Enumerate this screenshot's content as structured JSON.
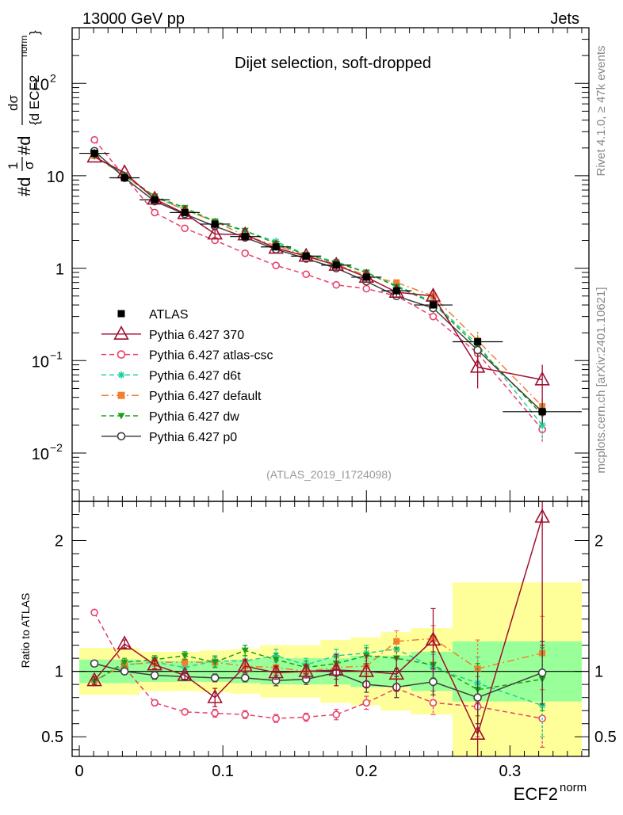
{
  "header": {
    "energy_label": "13000 GeV pp",
    "category_label": "Jets",
    "panel_title": "Dijet selection, soft-dropped",
    "analysis_id": "(ATLAS_2019_I1724098)",
    "side_text_version": "Rivet 4.1.0, ≥ 47k events",
    "side_text_site": "mcplots.cern.ch [arXiv:2401.10621]"
  },
  "colors": {
    "band_inner": "#99ff99",
    "band_outer": "#ffff99",
    "atlas": "#000000",
    "p370": "#a01030",
    "atlascsc": "#e8406a",
    "d6t": "#20d0a0",
    "default": "#f08030",
    "dw": "#18a018",
    "p0": "#404040"
  },
  "chart_data": [
    {
      "type": "line",
      "panel": "main",
      "title": "Dijet selection, soft-dropped",
      "ylabel": "#d¹/σ #dσ/{d ECF2^norm}",
      "ylabel_parts": {
        "a": "#d",
        "b": "1",
        "c": "σ",
        "d": "#d",
        "e": "dσ",
        "f": "{d ECF2",
        "g": "norm",
        "h": "}"
      },
      "yscale": "log",
      "xlim": [
        -0.005,
        0.355
      ],
      "ylim": [
        0.003,
        400
      ],
      "ytick_labels": [
        {
          "value": 0.01,
          "base": "10",
          "exp": "−2"
        },
        {
          "value": 0.1,
          "base": "10",
          "exp": "−1"
        },
        {
          "value": 1,
          "base": "1",
          "exp": ""
        },
        {
          "value": 10,
          "base": "10",
          "exp": ""
        },
        {
          "value": 100,
          "base": "10",
          "exp": "2"
        }
      ],
      "x": [
        0.0105,
        0.0315,
        0.0525,
        0.0735,
        0.0945,
        0.1155,
        0.137,
        0.158,
        0.179,
        0.2,
        0.221,
        0.2465,
        0.2775,
        0.3225
      ],
      "x_half_widths": [
        0.0105,
        0.0105,
        0.0105,
        0.0105,
        0.0105,
        0.0105,
        0.0105,
        0.0105,
        0.0105,
        0.0105,
        0.0105,
        0.0135,
        0.0175,
        0.0275
      ],
      "series": [
        {
          "name": "ATLAS",
          "key": "atlas",
          "marker": "filled-square",
          "line": "none",
          "values": [
            17.5,
            9.5,
            5.5,
            4.0,
            3.0,
            2.2,
            1.7,
            1.35,
            1.08,
            0.8,
            0.57,
            0.4,
            0.16,
            0.028
          ]
        },
        {
          "name": "Pythia 6.427 370",
          "key": "p370",
          "marker": "open-triangle",
          "line": "solid",
          "values": [
            16.0,
            10.8,
            5.6,
            3.9,
            2.35,
            2.3,
            1.65,
            1.35,
            1.08,
            0.8,
            0.55,
            0.5,
            0.085,
            0.062
          ],
          "errors": [
            0.5,
            0.3,
            0.15,
            0.12,
            0.25,
            0.12,
            0.08,
            0.06,
            0.12,
            0.1,
            0.07,
            0.09,
            0.035,
            0.028
          ]
        },
        {
          "name": "Pythia 6.427 atlas-csc",
          "key": "atlascsc",
          "marker": "open-circle",
          "line": "dashed",
          "values": [
            24.5,
            9.8,
            4.0,
            2.7,
            2.0,
            1.45,
            1.07,
            0.86,
            0.66,
            0.6,
            0.5,
            0.3,
            0.12,
            0.018
          ],
          "errors": [
            0.5,
            0.2,
            0.1,
            0.08,
            0.08,
            0.06,
            0.05,
            0.04,
            0.04,
            0.04,
            0.04,
            0.03,
            0.04,
            0.005
          ]
        },
        {
          "name": "Pythia 6.427 d6t",
          "key": "d6t",
          "marker": "star",
          "line": "dashed",
          "values": [
            16.5,
            10.0,
            5.9,
            4.3,
            3.2,
            2.5,
            1.95,
            1.4,
            1.18,
            0.9,
            0.65,
            0.43,
            0.15,
            0.02
          ],
          "errors": [
            0.4,
            0.2,
            0.1,
            0.1,
            0.1,
            0.08,
            0.06,
            0.05,
            0.05,
            0.05,
            0.05,
            0.04,
            0.04,
            0.006
          ]
        },
        {
          "name": "Pythia 6.427 default",
          "key": "default",
          "marker": "filled-square",
          "line": "dashdot",
          "values": [
            16.5,
            10.0,
            5.9,
            4.3,
            3.2,
            2.25,
            1.75,
            1.38,
            1.1,
            0.83,
            0.7,
            0.5,
            0.165,
            0.032
          ],
          "errors": [
            0.4,
            0.2,
            0.1,
            0.1,
            0.1,
            0.08,
            0.06,
            0.05,
            0.05,
            0.05,
            0.05,
            0.04,
            0.04,
            0.007
          ]
        },
        {
          "name": "Pythia 6.427 dw",
          "key": "dw",
          "marker": "filled-triangle-down",
          "line": "dashed",
          "values": [
            16.2,
            10.2,
            6.0,
            4.5,
            3.2,
            2.55,
            1.85,
            1.4,
            1.15,
            0.9,
            0.63,
            0.42,
            0.14,
            0.026
          ],
          "errors": [
            0.4,
            0.2,
            0.1,
            0.1,
            0.1,
            0.08,
            0.06,
            0.05,
            0.05,
            0.05,
            0.05,
            0.04,
            0.04,
            0.006
          ]
        },
        {
          "name": "Pythia 6.427 p0",
          "key": "p0",
          "marker": "open-circle",
          "line": "solid",
          "values": [
            18.5,
            9.5,
            5.3,
            3.85,
            2.85,
            2.15,
            1.6,
            1.27,
            1.0,
            0.72,
            0.5,
            0.37,
            0.13,
            0.028
          ],
          "errors": [
            0.4,
            0.2,
            0.1,
            0.1,
            0.1,
            0.08,
            0.06,
            0.05,
            0.05,
            0.05,
            0.04,
            0.04,
            0.04,
            0.007
          ]
        }
      ]
    },
    {
      "type": "line",
      "panel": "ratio",
      "ylabel": "Ratio to ATLAS",
      "xlabel": "ECF2",
      "xlabel_superscript": "norm",
      "xlim": [
        -0.005,
        0.355
      ],
      "ylim": [
        0.35,
        2.3
      ],
      "xticks": [
        0,
        0.1,
        0.2,
        0.3
      ],
      "xtick_labels": [
        "0",
        "0.1",
        "0.2",
        "0.3"
      ],
      "yticks": [
        0.5,
        1,
        2
      ],
      "ytick_labels": [
        "0.5",
        "1",
        "2"
      ],
      "x_bin_edges": [
        0,
        0.021,
        0.042,
        0.063,
        0.084,
        0.105,
        0.126,
        0.147,
        0.168,
        0.189,
        0.21,
        0.231,
        0.26,
        0.295,
        0.35
      ],
      "band_inner_halfwidth": [
        0.09,
        0.09,
        0.08,
        0.08,
        0.08,
        0.09,
        0.1,
        0.1,
        0.1,
        0.12,
        0.12,
        0.15,
        0.23,
        0.23
      ],
      "band_outer_halfwidth": [
        0.18,
        0.18,
        0.15,
        0.15,
        0.16,
        0.17,
        0.2,
        0.2,
        0.24,
        0.26,
        0.3,
        0.33,
        0.68,
        0.68
      ],
      "series": [
        {
          "name": "Pythia 6.427 370",
          "key": "p370",
          "values": [
            0.93,
            1.21,
            1.05,
            0.97,
            0.8,
            1.04,
            0.99,
            1.0,
            1.01,
            1.0,
            0.98,
            1.24,
            0.52,
            2.18
          ],
          "errors": [
            0.03,
            0.03,
            0.03,
            0.03,
            0.07,
            0.05,
            0.05,
            0.05,
            0.12,
            0.12,
            0.13,
            0.24,
            0.24,
            0.98
          ]
        },
        {
          "name": "Pythia 6.427 atlas-csc",
          "key": "atlascsc",
          "values": [
            1.45,
            1.03,
            0.76,
            0.69,
            0.68,
            0.67,
            0.64,
            0.65,
            0.67,
            0.76,
            0.87,
            0.76,
            0.73,
            0.64
          ],
          "errors": [
            0.02,
            0.02,
            0.02,
            0.02,
            0.03,
            0.03,
            0.03,
            0.03,
            0.04,
            0.05,
            0.07,
            0.09,
            0.23,
            0.22
          ]
        },
        {
          "name": "Pythia 6.427 d6t",
          "key": "d6t",
          "values": [
            0.93,
            1.05,
            1.07,
            1.03,
            1.08,
            1.08,
            1.12,
            1.05,
            1.12,
            1.14,
            1.17,
            1.03,
            0.91,
            0.74
          ],
          "errors": [
            0.03,
            0.03,
            0.03,
            0.03,
            0.04,
            0.04,
            0.05,
            0.05,
            0.05,
            0.06,
            0.08,
            0.1,
            0.2,
            0.24
          ]
        },
        {
          "name": "Pythia 6.427 default",
          "key": "default",
          "values": [
            0.93,
            1.05,
            1.07,
            1.07,
            1.07,
            1.04,
            1.03,
            1.0,
            1.03,
            1.04,
            1.23,
            1.25,
            1.02,
            1.14
          ],
          "errors": [
            0.03,
            0.03,
            0.03,
            0.03,
            0.04,
            0.04,
            0.05,
            0.05,
            0.05,
            0.06,
            0.08,
            0.1,
            0.22,
            0.28
          ]
        },
        {
          "name": "Pythia 6.427 dw",
          "key": "dw",
          "values": [
            0.92,
            1.07,
            1.09,
            1.12,
            1.07,
            1.16,
            1.09,
            1.03,
            1.06,
            1.12,
            1.1,
            1.05,
            0.86,
            0.94
          ],
          "errors": [
            0.03,
            0.03,
            0.03,
            0.03,
            0.04,
            0.04,
            0.05,
            0.05,
            0.05,
            0.06,
            0.08,
            0.1,
            0.2,
            0.24
          ]
        },
        {
          "name": "Pythia 6.427 p0",
          "key": "p0",
          "values": [
            1.06,
            1.0,
            0.97,
            0.96,
            0.95,
            0.95,
            0.93,
            0.94,
            0.99,
            0.9,
            0.88,
            0.92,
            0.8,
            0.99
          ],
          "errors": [
            0.02,
            0.02,
            0.03,
            0.03,
            0.03,
            0.03,
            0.04,
            0.04,
            0.05,
            0.06,
            0.08,
            0.1,
            0.2,
            0.24
          ]
        }
      ]
    }
  ]
}
